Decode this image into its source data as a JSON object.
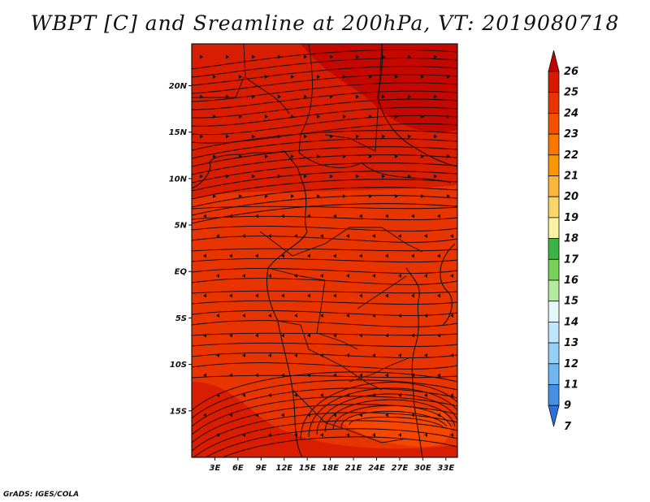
{
  "title": "WBPT [C] and Sreamline at 200hPa, VT: 2019080718",
  "credit": "GrADS: IGES/COLA",
  "map": {
    "lon_labels": [
      "3E",
      "6E",
      "9E",
      "12E",
      "15E",
      "18E",
      "21E",
      "24E",
      "27E",
      "30E",
      "33E"
    ],
    "lon_values": [
      3,
      6,
      9,
      12,
      15,
      18,
      21,
      24,
      27,
      30,
      33
    ],
    "lat_labels": [
      "20N",
      "15N",
      "10N",
      "5N",
      "EQ",
      "5S",
      "10S",
      "15S"
    ],
    "lat_values": [
      20,
      15,
      10,
      5,
      0,
      -5,
      -10,
      -15
    ],
    "lon_range": [
      0,
      34.5
    ],
    "lat_range": [
      -20,
      24.5
    ]
  },
  "colorbar": {
    "labels": [
      "26",
      "25",
      "24",
      "23",
      "22",
      "21",
      "20",
      "19",
      "18",
      "17",
      "16",
      "15",
      "14",
      "13",
      "12",
      "11",
      "9",
      "7"
    ],
    "colors": [
      "#c40000",
      "#d81a00",
      "#e83500",
      "#f55000",
      "#fa7800",
      "#fa9600",
      "#fbb43c",
      "#f9d56a",
      "#fbf1a2",
      "#3cb444",
      "#78d258",
      "#b4eaa0",
      "#e4f8fa",
      "#bfe6fa",
      "#95d0f6",
      "#6eb9f2",
      "#4690e6",
      "#2b70dc"
    ]
  },
  "field": {
    "colors": {
      "very_high": "#c40800",
      "high": "#d81d00",
      "mid": "#e83500",
      "low": "#f54700"
    }
  }
}
